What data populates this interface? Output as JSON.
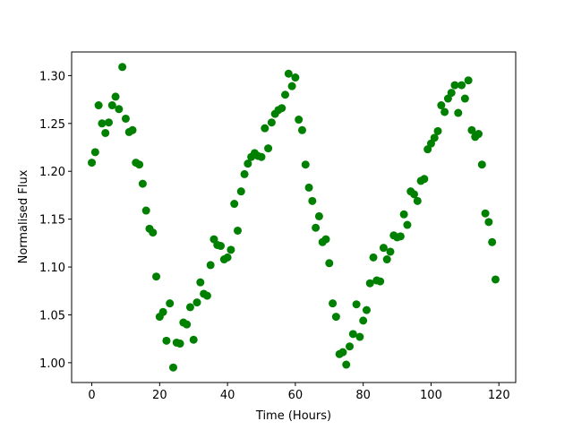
{
  "chart_data": {
    "type": "scatter",
    "x_label": "Time (Hours)",
    "y_label": "Normalised Flux",
    "color": "#008000",
    "x": [
      0,
      1,
      2,
      3,
      4,
      5,
      6,
      7,
      8,
      9,
      10,
      11,
      12,
      13,
      14,
      15,
      16,
      17,
      18,
      19,
      20,
      21,
      22,
      23,
      24,
      25,
      26,
      27,
      28,
      29,
      30,
      31,
      32,
      33,
      34,
      35,
      36,
      37,
      38,
      39,
      40,
      41,
      42,
      43,
      44,
      45,
      46,
      47,
      48,
      49,
      50,
      51,
      52,
      53,
      54,
      55,
      56,
      57,
      58,
      59,
      60,
      61,
      62,
      63,
      64,
      65,
      66,
      67,
      68,
      69,
      70,
      71,
      72,
      73,
      74,
      75,
      76,
      77,
      78,
      79,
      80,
      81,
      82,
      83,
      84,
      85,
      86,
      87,
      88,
      89,
      90,
      91,
      92,
      93,
      94,
      95,
      96,
      97,
      98,
      99,
      100,
      101,
      102,
      103,
      104,
      105,
      106,
      107,
      108,
      109,
      110,
      111,
      112,
      113,
      114,
      115,
      116,
      117,
      118,
      119
    ],
    "values": [
      1.209,
      1.22,
      1.269,
      1.25,
      1.24,
      1.251,
      1.269,
      1.278,
      1.265,
      1.309,
      1.255,
      1.241,
      1.243,
      1.209,
      1.207,
      1.187,
      1.159,
      1.14,
      1.136,
      1.09,
      1.048,
      1.053,
      1.023,
      1.062,
      0.995,
      1.021,
      1.02,
      1.042,
      1.04,
      1.058,
      1.024,
      1.063,
      1.084,
      1.072,
      1.07,
      1.102,
      1.129,
      1.123,
      1.122,
      1.108,
      1.11,
      1.118,
      1.166,
      1.138,
      1.179,
      1.197,
      1.208,
      1.215,
      1.219,
      1.216,
      1.215,
      1.245,
      1.224,
      1.251,
      1.26,
      1.264,
      1.266,
      1.28,
      1.302,
      1.289,
      1.298,
      1.254,
      1.243,
      1.207,
      1.183,
      1.169,
      1.141,
      1.153,
      1.126,
      1.129,
      1.104,
      1.062,
      1.048,
      1.009,
      1.011,
      0.998,
      1.017,
      1.03,
      1.061,
      1.027,
      1.044,
      1.055,
      1.083,
      1.11,
      1.086,
      1.085,
      1.12,
      1.108,
      1.116,
      1.133,
      1.131,
      1.132,
      1.155,
      1.144,
      1.179,
      1.176,
      1.169,
      1.19,
      1.192,
      1.223,
      1.229,
      1.235,
      1.242,
      1.269,
      1.262,
      1.276,
      1.282,
      1.29,
      1.261,
      1.29,
      1.276,
      1.295,
      1.243,
      1.236,
      1.239,
      1.207,
      1.156,
      1.147,
      1.126,
      1.087
    ],
    "xlim": [
      -5.95,
      124.95
    ],
    "ylim": [
      0.9793,
      1.3247
    ],
    "xticks": [
      0,
      20,
      40,
      60,
      80,
      100,
      120
    ],
    "yticks": [
      {
        "value": 1.0,
        "label": "1.00"
      },
      {
        "value": 1.05,
        "label": "1.05"
      },
      {
        "value": 1.1,
        "label": "1.10"
      },
      {
        "value": 1.15,
        "label": "1.15"
      },
      {
        "value": 1.2,
        "label": "1.20"
      },
      {
        "value": 1.25,
        "label": "1.25"
      },
      {
        "value": 1.3,
        "label": "1.30"
      }
    ]
  }
}
